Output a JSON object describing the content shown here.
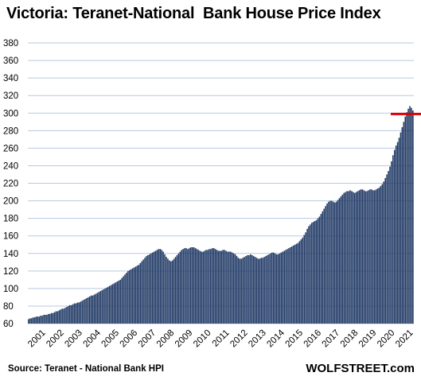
{
  "chart_data": {
    "type": "bar",
    "title": "Victoria: Teranet-National  Bank House Price Index",
    "source": "Source: Teranet - National Bank HPI",
    "brand": "WOLFSTREET.com",
    "ylim": [
      60,
      390
    ],
    "yticks": [
      60,
      80,
      100,
      120,
      140,
      160,
      180,
      200,
      220,
      240,
      260,
      280,
      300,
      320,
      340,
      360,
      380
    ],
    "x_labels": [
      "2001",
      "2002",
      "2003",
      "2004",
      "2005",
      "2006",
      "2007",
      "2008",
      "2009",
      "2010",
      "2011",
      "2012",
      "2013",
      "2014",
      "2015",
      "2016",
      "2017",
      "2018",
      "2019",
      "2020",
      "2021"
    ],
    "start_year": 2001,
    "grid": true,
    "bar_color": "#1f3864",
    "reference_line": {
      "value": 299,
      "color": "#e00000"
    },
    "values": [
      65,
      66,
      66,
      67,
      67,
      68,
      68,
      68,
      69,
      69,
      70,
      70,
      70,
      71,
      71,
      72,
      72,
      73,
      74,
      74,
      75,
      76,
      77,
      77,
      78,
      79,
      80,
      81,
      81,
      82,
      83,
      83,
      84,
      84,
      85,
      86,
      87,
      88,
      89,
      90,
      91,
      92,
      92,
      93,
      94,
      95,
      96,
      97,
      98,
      99,
      100,
      101,
      102,
      103,
      104,
      105,
      106,
      107,
      108,
      109,
      110,
      112,
      114,
      116,
      118,
      120,
      121,
      122,
      123,
      124,
      125,
      126,
      127,
      129,
      131,
      133,
      135,
      137,
      138,
      139,
      140,
      141,
      142,
      143,
      144,
      145,
      145,
      144,
      142,
      139,
      136,
      134,
      132,
      131,
      132,
      134,
      136,
      138,
      140,
      142,
      144,
      145,
      146,
      146,
      145,
      146,
      147,
      147,
      147,
      146,
      145,
      144,
      143,
      142,
      142,
      143,
      144,
      144,
      145,
      145,
      146,
      146,
      145,
      144,
      143,
      143,
      143,
      144,
      144,
      143,
      142,
      142,
      142,
      141,
      140,
      139,
      137,
      135,
      134,
      134,
      135,
      136,
      137,
      138,
      138,
      139,
      138,
      137,
      136,
      135,
      134,
      134,
      135,
      135,
      136,
      137,
      138,
      139,
      140,
      141,
      141,
      140,
      139,
      139,
      140,
      141,
      142,
      143,
      144,
      145,
      146,
      147,
      148,
      149,
      150,
      151,
      152,
      154,
      156,
      158,
      161,
      164,
      168,
      171,
      173,
      175,
      176,
      177,
      178,
      180,
      182,
      185,
      188,
      191,
      194,
      197,
      199,
      200,
      200,
      199,
      198,
      199,
      201,
      203,
      205,
      207,
      209,
      210,
      211,
      211,
      212,
      211,
      210,
      209,
      210,
      211,
      212,
      213,
      213,
      212,
      211,
      211,
      212,
      213,
      213,
      212,
      212,
      213,
      214,
      215,
      217,
      219,
      222,
      226,
      230,
      234,
      239,
      245,
      252,
      258,
      263,
      267,
      272,
      278,
      284,
      290,
      296,
      301,
      305,
      308,
      306,
      303
    ]
  }
}
